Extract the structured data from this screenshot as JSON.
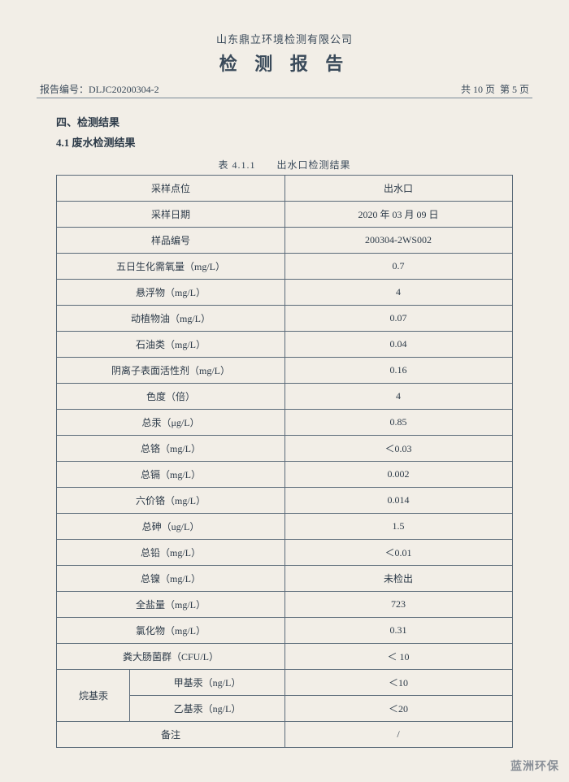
{
  "company": "山东鼎立环境检测有限公司",
  "title": "检 测 报 告",
  "report_label": "报告编号：",
  "report_no": "DLJC20200304-2",
  "page_total_label": "共 10 页",
  "page_current_label": "第 5 页",
  "section4": "四、检测结果",
  "section41": "4.1 废水检测结果",
  "table_caption": "表 4.1.1　　出水口检测结果",
  "rows": [
    {
      "label": "采样点位",
      "value": "出水口"
    },
    {
      "label": "采样日期",
      "value": "2020 年 03 月 09 日"
    },
    {
      "label": "样品编号",
      "value": "200304-2WS002"
    },
    {
      "label": "五日生化需氧量（mg/L）",
      "value": "0.7"
    },
    {
      "label": "悬浮物（mg/L）",
      "value": "4"
    },
    {
      "label": "动植物油（mg/L）",
      "value": "0.07"
    },
    {
      "label": "石油类（mg/L）",
      "value": "0.04"
    },
    {
      "label": "阴离子表面活性剂（mg/L）",
      "value": "0.16"
    },
    {
      "label": "色度（倍）",
      "value": "4"
    },
    {
      "label": "总汞（μg/L）",
      "value": "0.85"
    },
    {
      "label": "总铬（mg/L）",
      "value": "＜0.03"
    },
    {
      "label": "总镉（mg/L）",
      "value": "0.002"
    },
    {
      "label": "六价铬（mg/L）",
      "value": "0.014"
    },
    {
      "label": "总砷（ug/L）",
      "value": "1.5"
    },
    {
      "label": "总铅（mg/L）",
      "value": "＜0.01"
    },
    {
      "label": "总镍（mg/L）",
      "value": "未检出"
    },
    {
      "label": "全盐量（mg/L）",
      "value": "723"
    },
    {
      "label": "氯化物（mg/L）",
      "value": "0.31"
    },
    {
      "label": "粪大肠菌群（CFU/L）",
      "value": "＜ 10"
    }
  ],
  "group_label": "烷基汞",
  "sub1_label": "甲基汞（ng/L）",
  "sub1_value": "＜10",
  "sub2_label": "乙基汞（ng/L）",
  "sub2_value": "＜20",
  "remark_label": "备注",
  "remark_value": "/",
  "watermark": "蓝洲环保",
  "colors": {
    "bg": "#f2eee7",
    "text": "#2c3a48",
    "border": "#5a6a78"
  }
}
